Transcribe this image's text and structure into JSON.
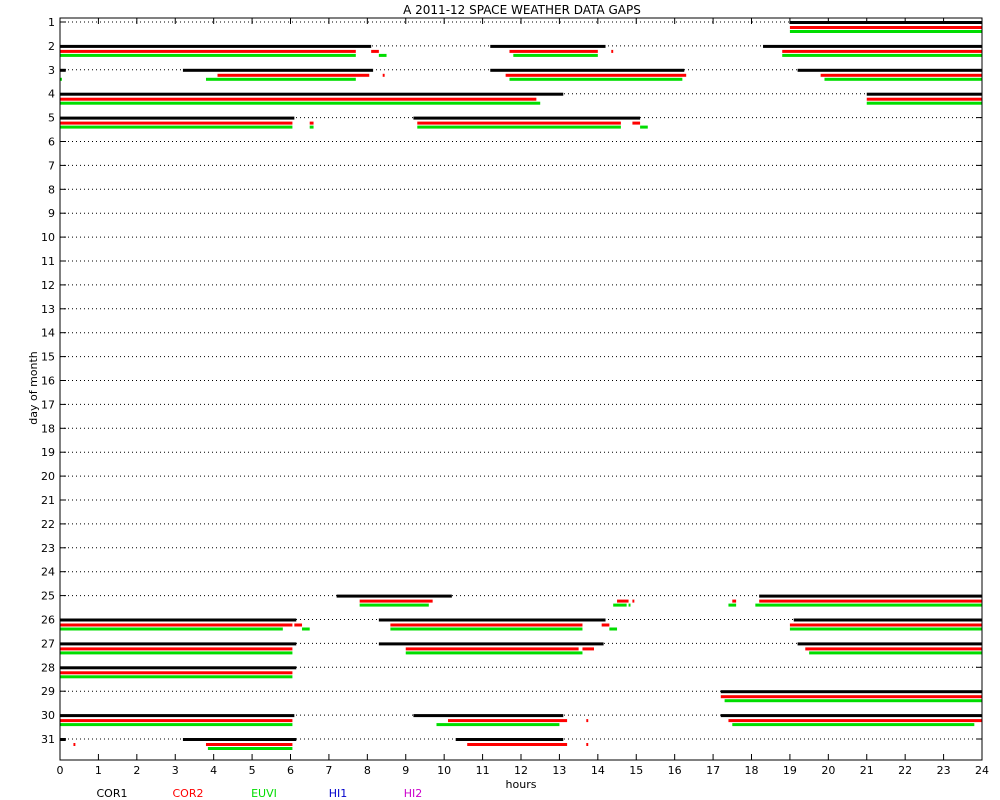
{
  "chart_data": {
    "type": "gantt",
    "title": "A  2011-12 SPACE WEATHER DATA GAPS",
    "xlabel": "hours",
    "ylabel": "day of month",
    "xlim": [
      0,
      24
    ],
    "ylim": [
      1,
      31
    ],
    "x_ticks": [
      "0",
      "1",
      "2",
      "3",
      "4",
      "5",
      "6",
      "7",
      "8",
      "9",
      "10",
      "11",
      "12",
      "13",
      "14",
      "15",
      "16",
      "17",
      "18",
      "19",
      "20",
      "21",
      "22",
      "23",
      "24"
    ],
    "y_ticks": [
      "1",
      "2",
      "3",
      "4",
      "5",
      "6",
      "7",
      "8",
      "9",
      "10",
      "11",
      "12",
      "13",
      "14",
      "15",
      "16",
      "17",
      "18",
      "19",
      "20",
      "21",
      "22",
      "23",
      "24",
      "25",
      "26",
      "27",
      "28",
      "29",
      "30",
      "31"
    ],
    "grid": "dotted horizontal",
    "legend_position": "bottom",
    "series": [
      {
        "name": "COR1",
        "color": "#000000",
        "segments": [
          {
            "day": 1,
            "start": 19.0,
            "end": 24.0
          },
          {
            "day": 2,
            "start": 0.0,
            "end": 8.1
          },
          {
            "day": 2,
            "start": 11.2,
            "end": 14.2
          },
          {
            "day": 2,
            "start": 18.3,
            "end": 24.0
          },
          {
            "day": 3,
            "start": 0.0,
            "end": 0.15
          },
          {
            "day": 3,
            "start": 3.2,
            "end": 8.15
          },
          {
            "day": 3,
            "start": 11.2,
            "end": 16.25
          },
          {
            "day": 3,
            "start": 19.2,
            "end": 24.0
          },
          {
            "day": 4,
            "start": 0.0,
            "end": 13.1
          },
          {
            "day": 4,
            "start": 21.0,
            "end": 24.0
          },
          {
            "day": 5,
            "start": 0.0,
            "end": 6.1
          },
          {
            "day": 5,
            "start": 9.2,
            "end": 15.1
          },
          {
            "day": 25,
            "start": 7.2,
            "end": 10.2
          },
          {
            "day": 25,
            "start": 18.2,
            "end": 24.0
          },
          {
            "day": 26,
            "start": 0.0,
            "end": 6.15
          },
          {
            "day": 26,
            "start": 8.3,
            "end": 14.2
          },
          {
            "day": 26,
            "start": 19.1,
            "end": 24.0
          },
          {
            "day": 27,
            "start": 0.0,
            "end": 6.15
          },
          {
            "day": 27,
            "start": 8.3,
            "end": 14.15
          },
          {
            "day": 27,
            "start": 19.2,
            "end": 24.0
          },
          {
            "day": 28,
            "start": 0.0,
            "end": 6.15
          },
          {
            "day": 29,
            "start": 17.2,
            "end": 24.0
          },
          {
            "day": 30,
            "start": 0.0,
            "end": 6.1
          },
          {
            "day": 30,
            "start": 9.2,
            "end": 13.1
          },
          {
            "day": 30,
            "start": 17.2,
            "end": 24.0
          },
          {
            "day": 31,
            "start": 0.0,
            "end": 0.15
          },
          {
            "day": 31,
            "start": 3.2,
            "end": 6.15
          },
          {
            "day": 31,
            "start": 10.3,
            "end": 13.1
          }
        ]
      },
      {
        "name": "COR2",
        "color": "#ff0000",
        "segments": [
          {
            "day": 1,
            "start": 19.0,
            "end": 24.0
          },
          {
            "day": 2,
            "start": 0.0,
            "end": 7.7
          },
          {
            "day": 2,
            "start": 8.1,
            "end": 8.3
          },
          {
            "day": 2,
            "start": 11.7,
            "end": 14.0
          },
          {
            "day": 2,
            "start": 14.35,
            "end": 14.4
          },
          {
            "day": 2,
            "start": 18.8,
            "end": 24.0
          },
          {
            "day": 3,
            "start": 4.1,
            "end": 8.05
          },
          {
            "day": 3,
            "start": 8.4,
            "end": 8.45
          },
          {
            "day": 3,
            "start": 11.6,
            "end": 16.3
          },
          {
            "day": 3,
            "start": 19.8,
            "end": 24.0
          },
          {
            "day": 4,
            "start": 0.0,
            "end": 12.4
          },
          {
            "day": 4,
            "start": 21.0,
            "end": 24.0
          },
          {
            "day": 5,
            "start": 0.0,
            "end": 6.05
          },
          {
            "day": 5,
            "start": 6.5,
            "end": 6.6
          },
          {
            "day": 5,
            "start": 9.3,
            "end": 14.6
          },
          {
            "day": 5,
            "start": 14.9,
            "end": 15.1
          },
          {
            "day": 25,
            "start": 7.8,
            "end": 9.7
          },
          {
            "day": 25,
            "start": 14.5,
            "end": 14.8
          },
          {
            "day": 25,
            "start": 14.9,
            "end": 14.95
          },
          {
            "day": 25,
            "start": 17.5,
            "end": 17.6
          },
          {
            "day": 25,
            "start": 18.2,
            "end": 24.0
          },
          {
            "day": 26,
            "start": 0.0,
            "end": 6.05
          },
          {
            "day": 26,
            "start": 6.1,
            "end": 6.3
          },
          {
            "day": 26,
            "start": 8.6,
            "end": 13.6
          },
          {
            "day": 26,
            "start": 14.1,
            "end": 14.3
          },
          {
            "day": 26,
            "start": 19.0,
            "end": 24.0
          },
          {
            "day": 27,
            "start": 0.0,
            "end": 6.05
          },
          {
            "day": 27,
            "start": 9.0,
            "end": 13.5
          },
          {
            "day": 27,
            "start": 13.6,
            "end": 13.9
          },
          {
            "day": 27,
            "start": 19.4,
            "end": 24.0
          },
          {
            "day": 28,
            "start": 0.0,
            "end": 6.05
          },
          {
            "day": 29,
            "start": 17.2,
            "end": 24.0
          },
          {
            "day": 30,
            "start": 0.0,
            "end": 6.05
          },
          {
            "day": 30,
            "start": 10.1,
            "end": 13.2
          },
          {
            "day": 30,
            "start": 13.7,
            "end": 13.75
          },
          {
            "day": 30,
            "start": 17.4,
            "end": 24.0
          },
          {
            "day": 31,
            "start": 0.35,
            "end": 0.4
          },
          {
            "day": 31,
            "start": 3.8,
            "end": 6.05
          },
          {
            "day": 31,
            "start": 10.6,
            "end": 13.2
          },
          {
            "day": 31,
            "start": 13.7,
            "end": 13.75
          }
        ]
      },
      {
        "name": "EUVI",
        "color": "#00dd00",
        "segments": [
          {
            "day": 1,
            "start": 19.0,
            "end": 24.0
          },
          {
            "day": 2,
            "start": 0.0,
            "end": 7.7
          },
          {
            "day": 2,
            "start": 8.3,
            "end": 8.5
          },
          {
            "day": 2,
            "start": 11.8,
            "end": 14.0
          },
          {
            "day": 2,
            "start": 18.8,
            "end": 24.0
          },
          {
            "day": 3,
            "start": 0.0,
            "end": 0.05
          },
          {
            "day": 3,
            "start": 3.8,
            "end": 7.7
          },
          {
            "day": 3,
            "start": 11.7,
            "end": 16.2
          },
          {
            "day": 3,
            "start": 19.9,
            "end": 24.0
          },
          {
            "day": 4,
            "start": 0.0,
            "end": 12.5
          },
          {
            "day": 4,
            "start": 21.0,
            "end": 24.0
          },
          {
            "day": 5,
            "start": 0.0,
            "end": 6.05
          },
          {
            "day": 5,
            "start": 6.5,
            "end": 6.6
          },
          {
            "day": 5,
            "start": 9.3,
            "end": 14.6
          },
          {
            "day": 5,
            "start": 15.1,
            "end": 15.3
          },
          {
            "day": 25,
            "start": 7.8,
            "end": 9.6
          },
          {
            "day": 25,
            "start": 14.4,
            "end": 14.75
          },
          {
            "day": 25,
            "start": 14.8,
            "end": 14.85
          },
          {
            "day": 25,
            "start": 17.4,
            "end": 17.6
          },
          {
            "day": 25,
            "start": 18.1,
            "end": 24.0
          },
          {
            "day": 26,
            "start": 0.0,
            "end": 5.8
          },
          {
            "day": 26,
            "start": 6.3,
            "end": 6.5
          },
          {
            "day": 26,
            "start": 8.6,
            "end": 13.6
          },
          {
            "day": 26,
            "start": 14.3,
            "end": 14.5
          },
          {
            "day": 26,
            "start": 19.0,
            "end": 24.0
          },
          {
            "day": 27,
            "start": 0.0,
            "end": 6.05
          },
          {
            "day": 27,
            "start": 9.0,
            "end": 13.6
          },
          {
            "day": 27,
            "start": 19.5,
            "end": 24.0
          },
          {
            "day": 28,
            "start": 0.0,
            "end": 6.05
          },
          {
            "day": 29,
            "start": 17.3,
            "end": 24.0
          },
          {
            "day": 30,
            "start": 0.0,
            "end": 6.05
          },
          {
            "day": 30,
            "start": 9.8,
            "end": 13.0
          },
          {
            "day": 30,
            "start": 17.5,
            "end": 23.8
          },
          {
            "day": 31,
            "start": 3.85,
            "end": 6.05
          }
        ]
      },
      {
        "name": "HI1",
        "color": "#0000cc",
        "segments": []
      },
      {
        "name": "HI2",
        "color": "#cc00cc",
        "segments": []
      }
    ]
  }
}
